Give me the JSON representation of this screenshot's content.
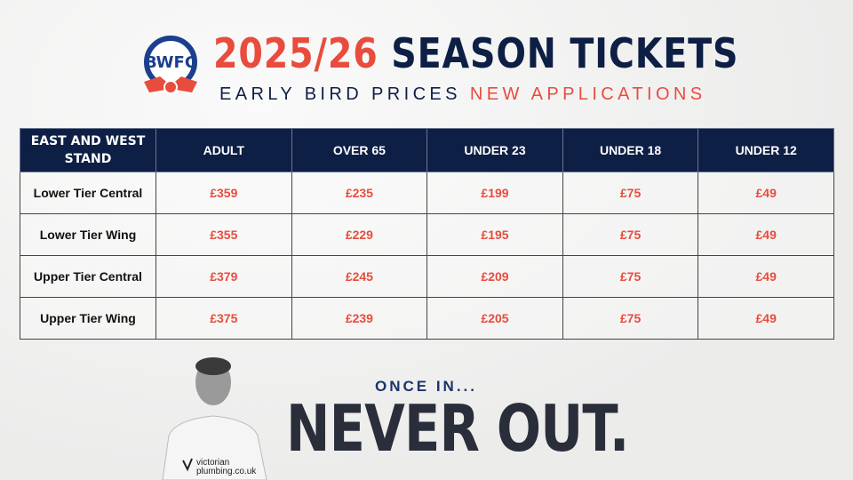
{
  "header": {
    "title_year": "2025/26",
    "title_rest": "SEASON TICKETS",
    "subtitle_a": "EARLY BIRD PRICES",
    "subtitle_b": "NEW APPLICATIONS"
  },
  "colors": {
    "navy": "#0e1f45",
    "red": "#e84c3d"
  },
  "table": {
    "headers": [
      "EAST AND WEST STAND",
      "ADULT",
      "OVER 65",
      "UNDER 23",
      "UNDER 18",
      "UNDER 12"
    ],
    "rows": [
      {
        "label": "Lower Tier Central",
        "values": [
          "£359",
          "£235",
          "£199",
          "£75",
          "£49"
        ]
      },
      {
        "label": "Lower Tier Wing",
        "values": [
          "£355",
          "£229",
          "£195",
          "£75",
          "£49"
        ]
      },
      {
        "label": "Upper Tier Central",
        "values": [
          "£379",
          "£245",
          "£209",
          "£75",
          "£49"
        ]
      },
      {
        "label": "Upper Tier Wing",
        "values": [
          "£375",
          "£239",
          "£205",
          "£75",
          "£49"
        ]
      }
    ]
  },
  "footer": {
    "tagline_top": "ONCE IN...",
    "tagline_main": "NEVER OUT.",
    "sponsor": "victorian plumbing.co.uk"
  }
}
